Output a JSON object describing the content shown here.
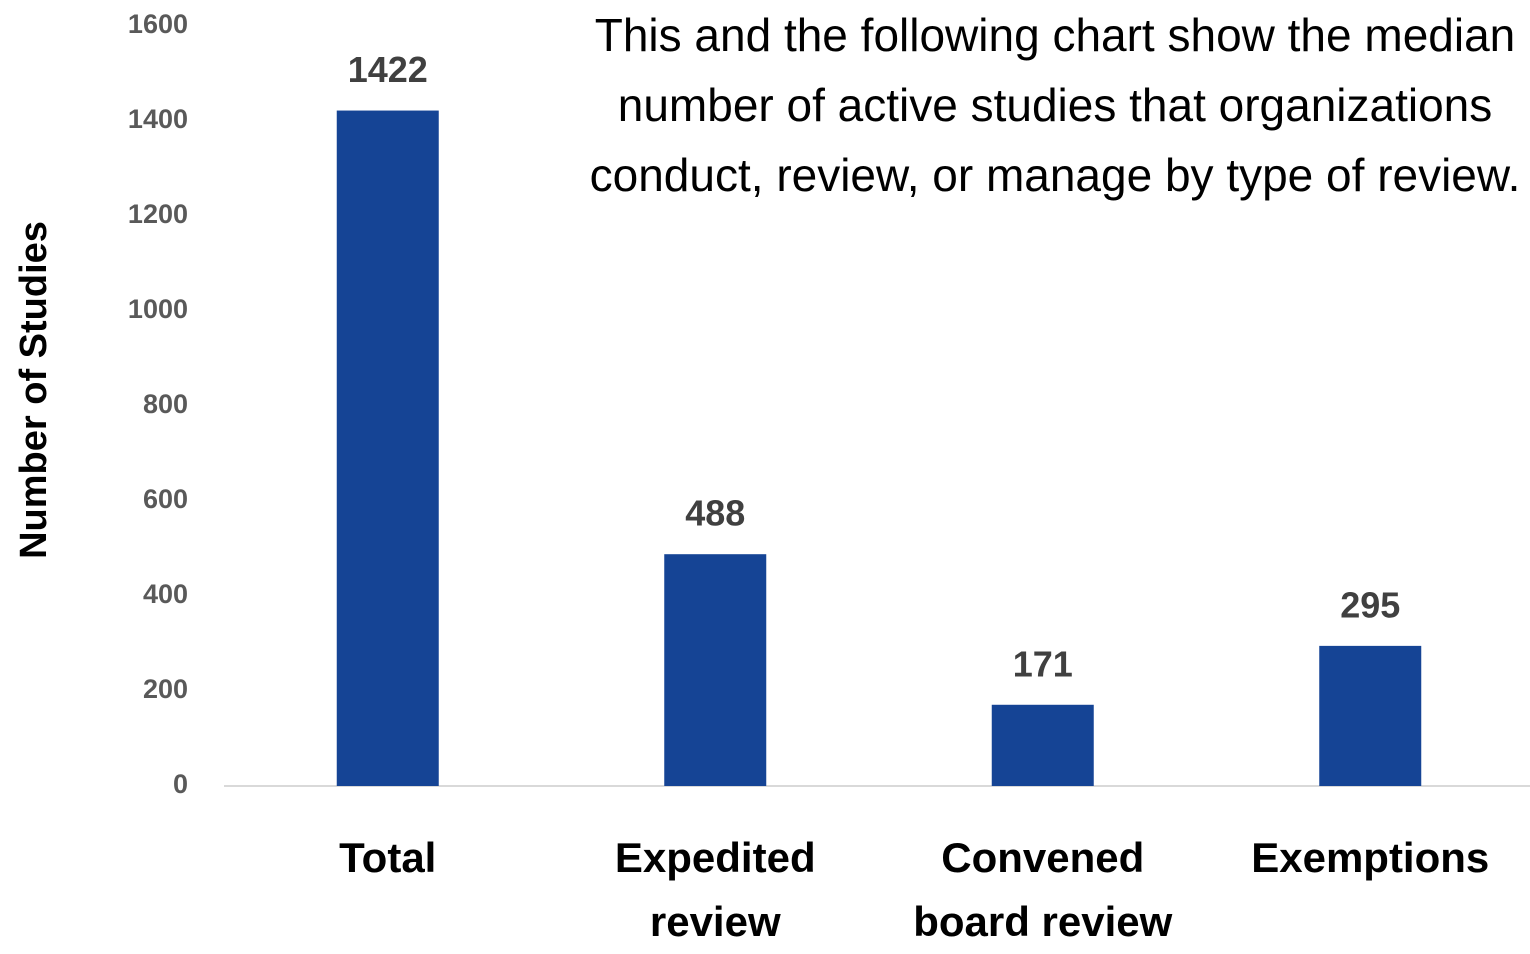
{
  "chart_data": {
    "type": "bar",
    "annotation": "This and the following chart show the median number of active studies that organizations conduct, review, or manage by type of review.",
    "y_label": "Number of Studies",
    "categories": [
      "Total",
      "Expedited review",
      "Convened board review",
      "Exemptions"
    ],
    "values": [
      1422,
      488,
      171,
      295
    ],
    "color": "#154495",
    "ylim": [
      0,
      1600
    ],
    "yticks": [
      0,
      200,
      400,
      600,
      800,
      1000,
      1200,
      1400,
      1600
    ],
    "grid": false
  }
}
